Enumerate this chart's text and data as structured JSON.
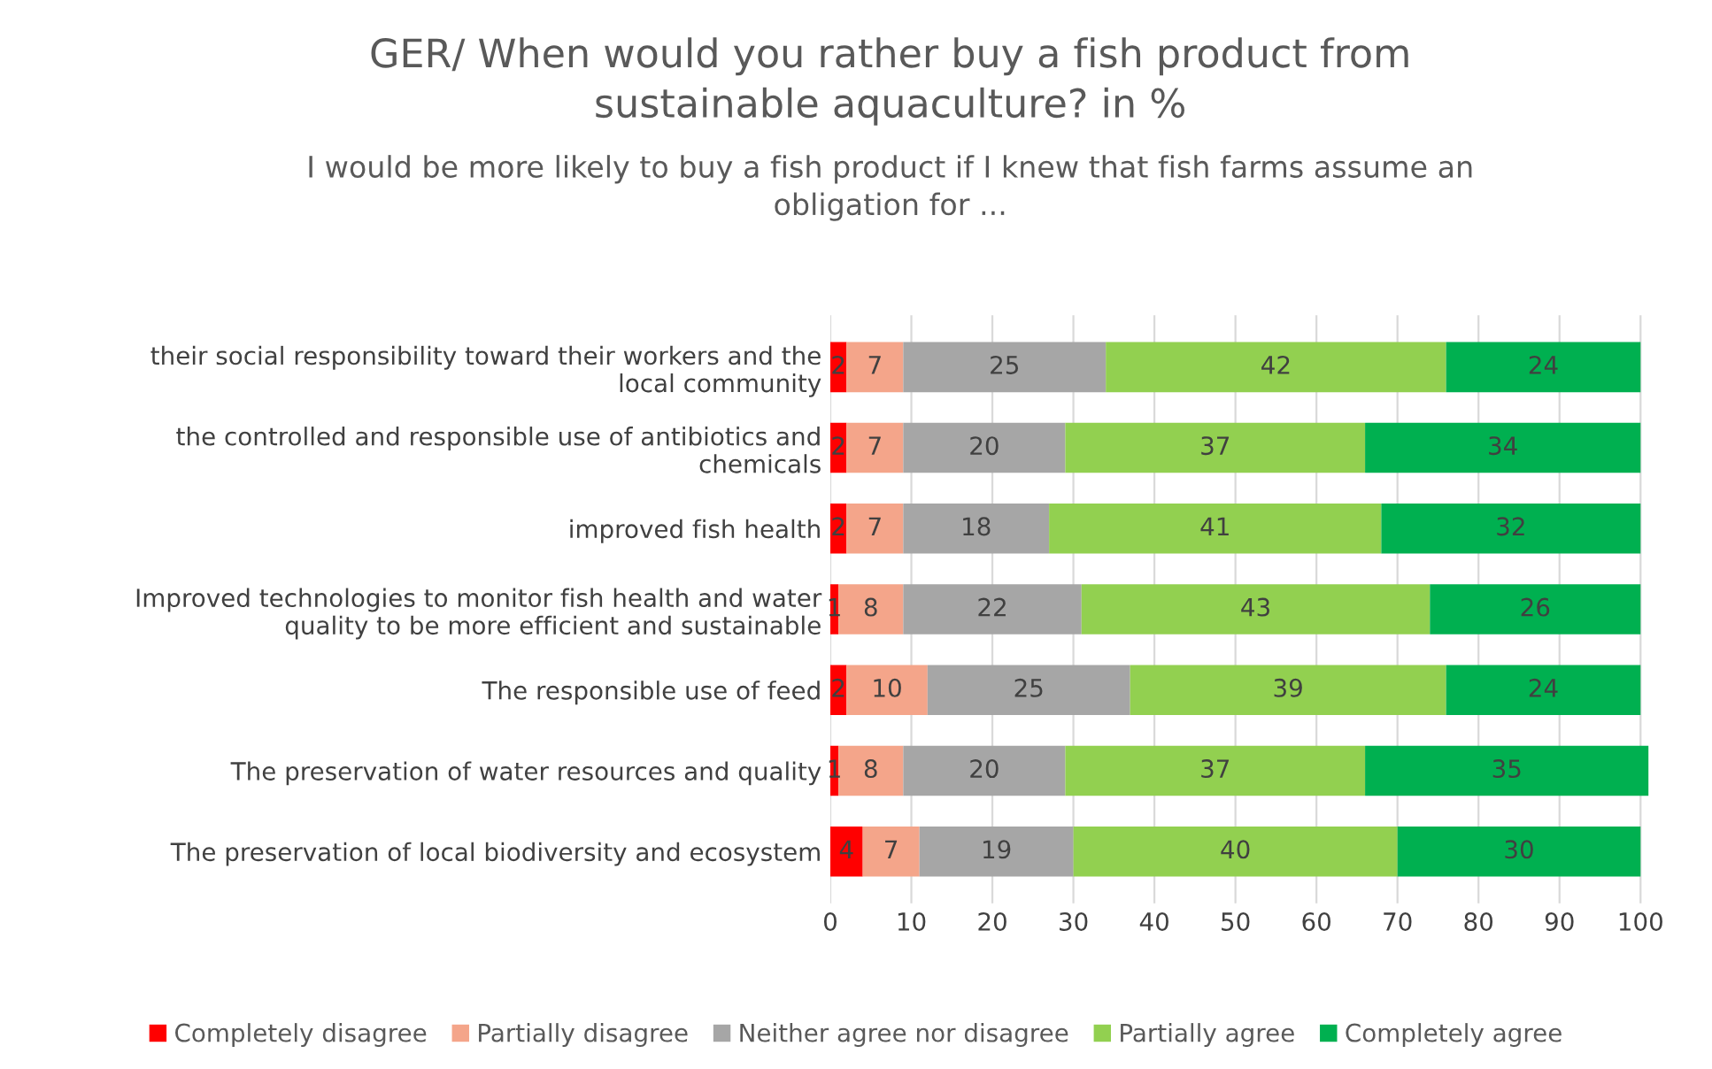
{
  "chart_data": {
    "type": "bar",
    "orientation": "horizontal",
    "stacked": true,
    "title": "GER/ When would you rather buy a fish product from\nsustainable aquaculture? in %",
    "subtitle": "I would be more likely to buy a fish product if I knew that fish farms assume an\nobligation for ...",
    "categories": [
      "their social responsibility toward their workers and the\nlocal community",
      "the controlled and responsible use of antibiotics and\nchemicals",
      "improved fish health",
      "Improved technologies to monitor fish health and water\nquality to be more efficient and sustainable",
      "The responsible use of feed",
      "The preservation of water resources and quality",
      "The preservation of local biodiversity and ecosystem"
    ],
    "series": [
      {
        "name": "Completely disagree",
        "color": "#ff0000",
        "values": [
          2,
          2,
          2,
          1,
          2,
          1,
          4
        ]
      },
      {
        "name": "Partially disagree",
        "color": "#f4a58a",
        "values": [
          7,
          7,
          7,
          8,
          10,
          8,
          7
        ]
      },
      {
        "name": "Neither agree nor disagree",
        "color": "#a6a6a6",
        "values": [
          25,
          20,
          18,
          22,
          25,
          20,
          19
        ]
      },
      {
        "name": "Partially agree",
        "color": "#92d050",
        "values": [
          42,
          37,
          41,
          43,
          39,
          37,
          40
        ]
      },
      {
        "name": "Completely agree",
        "color": "#00b050",
        "values": [
          24,
          34,
          32,
          26,
          24,
          35,
          30
        ]
      }
    ],
    "xlim": [
      0,
      101
    ],
    "xticks": [
      0,
      10,
      20,
      30,
      40,
      50,
      60,
      70,
      80,
      90,
      100
    ],
    "grid": "x",
    "legend": "bottom",
    "data_labels": true
  }
}
